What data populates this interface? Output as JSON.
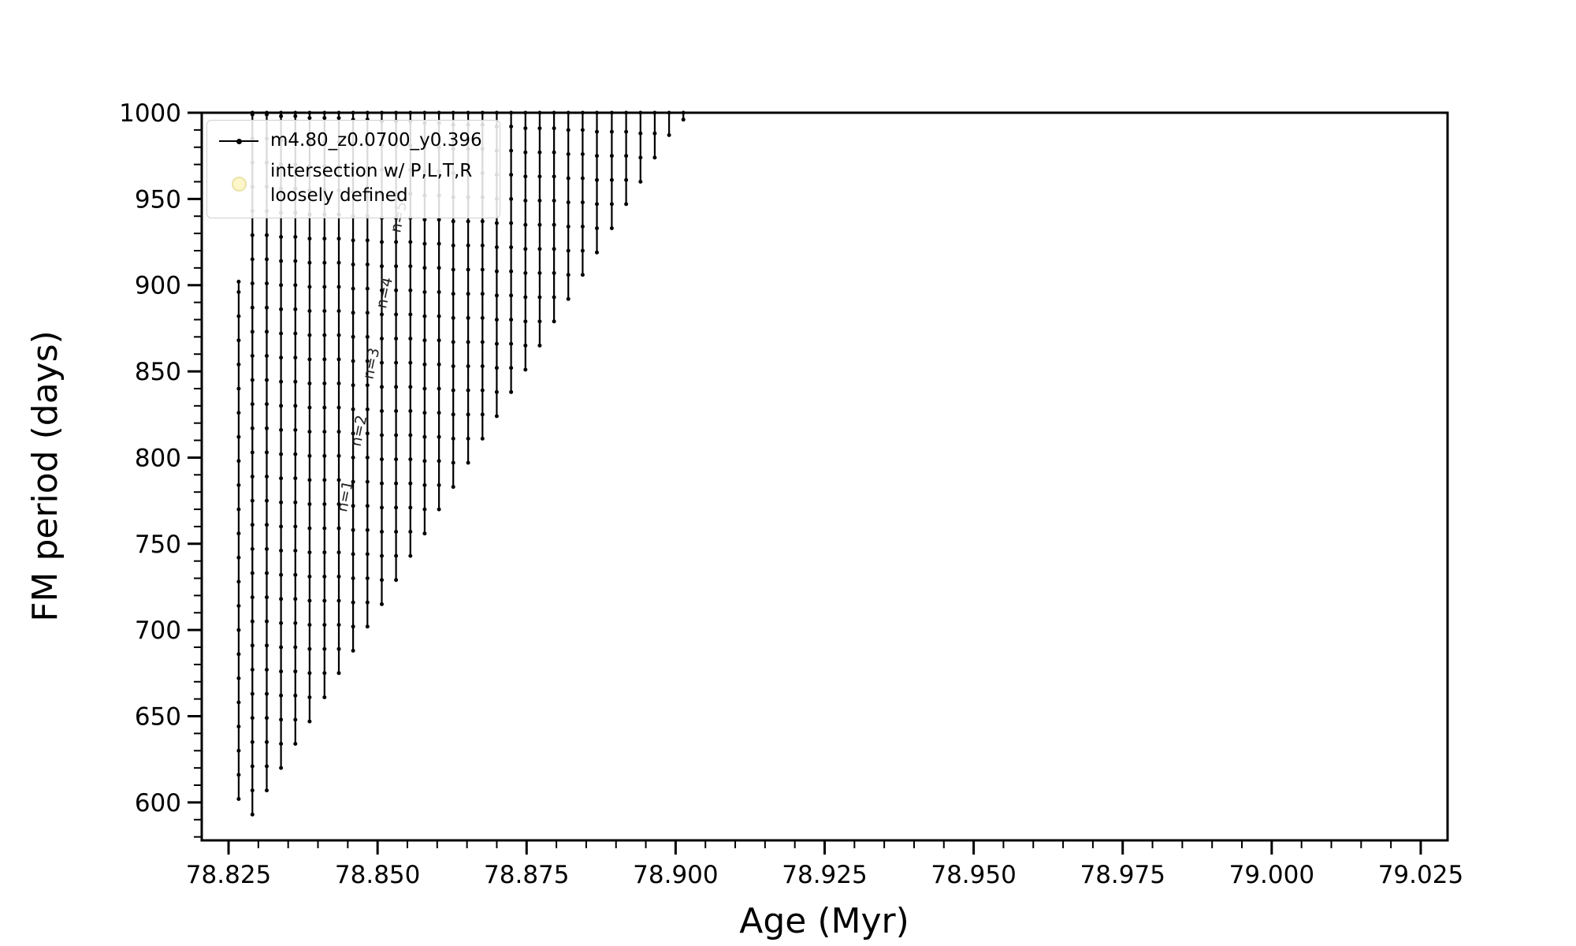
{
  "chart_data": {
    "type": "line",
    "title": "",
    "xlabel": "Age (Myr)",
    "ylabel": "FM period (days)",
    "grid": false,
    "xlim": [
      78.8205,
      79.0295
    ],
    "ylim": [
      578,
      1000
    ],
    "x_ticks": [
      {
        "v": 78.825,
        "label": "78.825"
      },
      {
        "v": 78.85,
        "label": "78.850"
      },
      {
        "v": 78.875,
        "label": "78.875"
      },
      {
        "v": 78.9,
        "label": "78.900"
      },
      {
        "v": 78.925,
        "label": "78.925"
      },
      {
        "v": 78.95,
        "label": "78.950"
      },
      {
        "v": 78.975,
        "label": "78.975"
      },
      {
        "v": 79.0,
        "label": "79.000"
      },
      {
        "v": 79.025,
        "label": "79.025"
      }
    ],
    "x_minor_step": 0.005,
    "y_ticks": [
      {
        "v": 600,
        "label": "600"
      },
      {
        "v": 650,
        "label": "650"
      },
      {
        "v": 700,
        "label": "700"
      },
      {
        "v": 750,
        "label": "750"
      },
      {
        "v": 800,
        "label": "800"
      },
      {
        "v": 850,
        "label": "850"
      },
      {
        "v": 900,
        "label": "900"
      },
      {
        "v": 950,
        "label": "950"
      },
      {
        "v": 1000,
        "label": "1000"
      }
    ],
    "y_minor_step": 10,
    "series_color": "#000000",
    "legend": {
      "position": "upper-left",
      "entries": [
        {
          "marker": "line-dot",
          "marker_color": "#000000",
          "label": "m4.80_z0.0700_y0.396"
        },
        {
          "marker": "circle",
          "marker_color": "#fcf6c8",
          "marker_edge": "#eae2a8",
          "label": "intersection w/ P,L,T,R\nloosely defined"
        }
      ]
    },
    "spikes": [
      [
        78.8267,
        602,
        902
      ],
      [
        78.829,
        593,
        1000
      ],
      [
        78.8314,
        607,
        1000
      ],
      [
        78.8338,
        620,
        1000
      ],
      [
        78.8362,
        634,
        1000
      ],
      [
        78.8386,
        647,
        1000
      ],
      [
        78.8411,
        661,
        1000
      ],
      [
        78.8435,
        675,
        1000
      ],
      [
        78.8459,
        688,
        1000
      ],
      [
        78.8483,
        702,
        1000
      ],
      [
        78.8507,
        715,
        1000
      ],
      [
        78.8531,
        729,
        1000
      ],
      [
        78.8555,
        743,
        1000
      ],
      [
        78.8579,
        756,
        1000
      ],
      [
        78.8603,
        770,
        1000
      ],
      [
        78.8627,
        783,
        1000
      ],
      [
        78.8652,
        797,
        1000
      ],
      [
        78.8676,
        811,
        1000
      ],
      [
        78.87,
        824,
        1000
      ],
      [
        78.8724,
        838,
        1000
      ],
      [
        78.8748,
        851,
        1000
      ],
      [
        78.8772,
        865,
        1000
      ],
      [
        78.8796,
        879,
        1000
      ],
      [
        78.882,
        892,
        1000
      ],
      [
        78.8844,
        906,
        1000
      ],
      [
        78.8868,
        919,
        1000
      ],
      [
        78.8893,
        933,
        1000
      ],
      [
        78.8917,
        947,
        1000
      ],
      [
        78.8941,
        960,
        1000
      ],
      [
        78.8965,
        974,
        1000
      ],
      [
        78.8989,
        987,
        1000
      ],
      [
        78.9013,
        996,
        1000
      ]
    ],
    "annotations": [
      {
        "text": "n=1",
        "x": 78.8448,
        "y": 768,
        "rotation": -78
      },
      {
        "text": "n=2",
        "x": 78.8471,
        "y": 806,
        "rotation": -78
      },
      {
        "text": "n=3",
        "x": 78.8492,
        "y": 845,
        "rotation": -78
      },
      {
        "text": "n=4",
        "x": 78.8514,
        "y": 886,
        "rotation": -78
      },
      {
        "text": "n=5",
        "x": 78.8538,
        "y": 930,
        "rotation": -78
      }
    ]
  }
}
